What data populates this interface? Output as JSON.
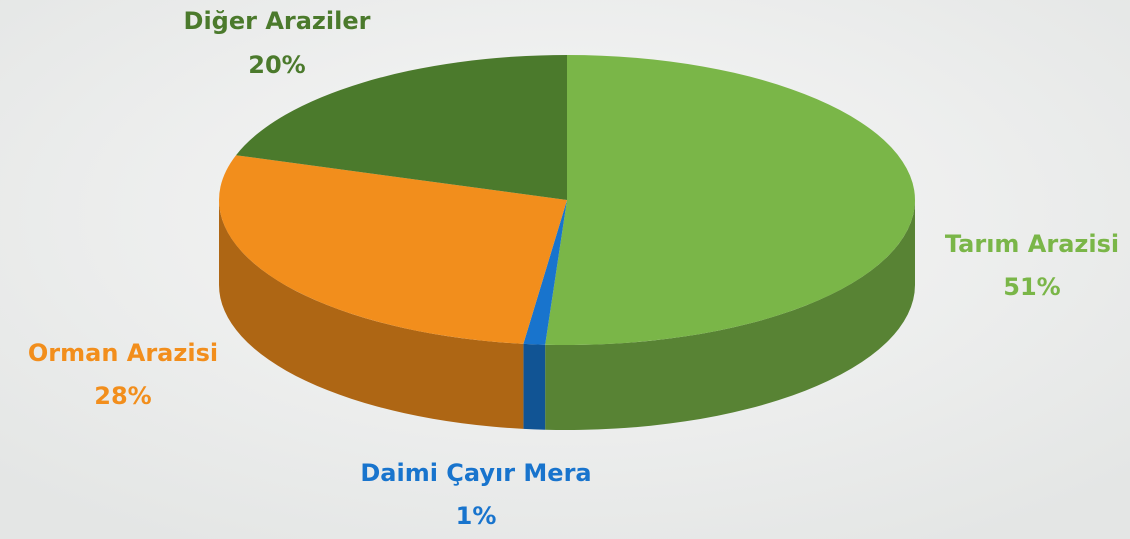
{
  "chart_data": {
    "type": "pie",
    "categories": [
      "Tarım Arazisi",
      "Daimi Çayır Mera",
      "Orman Arazisi",
      "Diğer Araziler"
    ],
    "values": [
      51,
      1,
      28,
      20
    ],
    "value_labels": [
      "51%",
      "1%",
      "28%",
      "20%"
    ],
    "colors": [
      "#7ab648",
      "#1874cd",
      "#f28e1c",
      "#4b7a2c"
    ]
  }
}
